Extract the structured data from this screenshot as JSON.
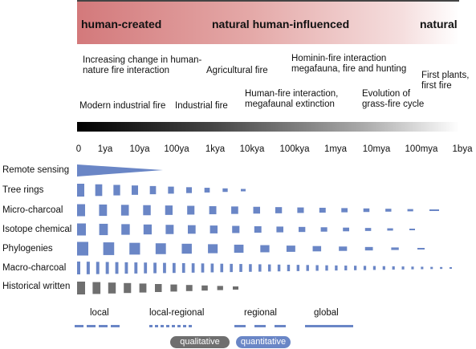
{
  "header": {
    "categories": [
      "human-created",
      "natural human-influenced",
      "natural"
    ]
  },
  "events": [
    "Increasing change in human-\nnature fire interaction",
    "Agricultural fire",
    "Hominin-fire interaction\nmegafauna, fire and hunting",
    "First plants,\nfirst fire",
    "Modern industrial fire",
    "Industrial fire",
    "Human-fire interaction,\nmegafaunal extinction",
    "Evolution of\ngrass-fire cycle"
  ],
  "timescale": [
    "0",
    "1ya",
    "10ya",
    "100ya",
    "1kya",
    "10kya",
    "100kya",
    "1mya",
    "10mya",
    "100mya",
    "1bya"
  ],
  "proxies": [
    {
      "name": "Remote sensing",
      "type": "quantitative",
      "extent": "0–100ya",
      "style": "wedge"
    },
    {
      "name": "Tree rings",
      "type": "quantitative",
      "extent": "0–10kya",
      "style": "bars"
    },
    {
      "name": "Micro-charcoal",
      "type": "quantitative",
      "extent": "0–100mya",
      "style": "bars"
    },
    {
      "name": "Isotope chemical",
      "type": "quantitative",
      "extent": "0–100mya",
      "style": "bars"
    },
    {
      "name": "Phylogenies",
      "type": "quantitative",
      "extent": "0–100mya",
      "style": "bars"
    },
    {
      "name": "Macro-charcoal",
      "type": "quantitative",
      "extent": "0–1bya",
      "style": "ticks"
    },
    {
      "name": "Historical written",
      "type": "qualitative",
      "extent": "0–1kya",
      "style": "bars"
    }
  ],
  "legend": {
    "scales": [
      "local",
      "local-regional",
      "regional",
      "global"
    ],
    "types": [
      "qualitative",
      "quantitative"
    ]
  },
  "colors": {
    "quantitative": "#6a86c6",
    "qualitative": "#6f6f6f",
    "band_start": "#d3797b",
    "band_end": "#ffffff"
  }
}
